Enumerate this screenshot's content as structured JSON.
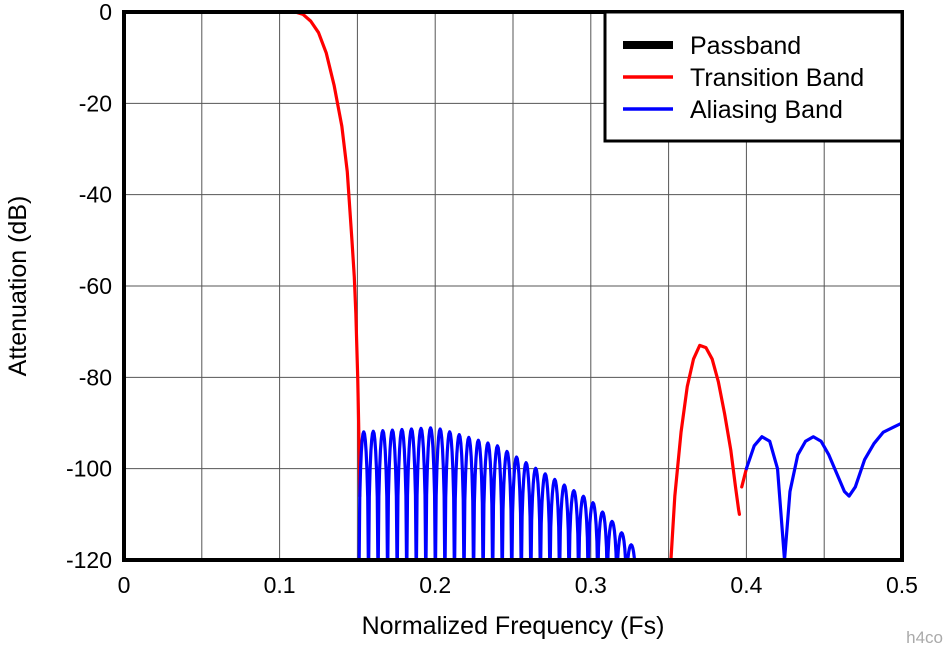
{
  "chart_data": {
    "type": "line",
    "xlabel": "Normalized Frequency (Fs)",
    "ylabel": "Attenuation (dB)",
    "xlim": [
      0,
      0.5
    ],
    "ylim": [
      -120,
      0
    ],
    "x_ticks": [
      "0",
      "0.1",
      "0.2",
      "0.3",
      "0.4",
      "0.5"
    ],
    "x_tick_values": [
      0,
      0.1,
      0.2,
      0.3,
      0.4,
      0.5
    ],
    "y_ticks": [
      "0",
      "-20",
      "-40",
      "-60",
      "-80",
      "-100",
      "-120"
    ],
    "y_tick_values": [
      0,
      -20,
      -40,
      -60,
      -80,
      -100,
      -120
    ],
    "x_minor_step": 0.05,
    "grid": true,
    "legend_position": "top-right",
    "series": [
      {
        "name": "Passband",
        "color": "#000000",
        "points": []
      },
      {
        "name": "Transition Band",
        "color": "#ff0000",
        "segments": [
          [
            [
              0.11,
              0
            ],
            [
              0.115,
              -0.5
            ],
            [
              0.12,
              -2
            ],
            [
              0.125,
              -4.5
            ],
            [
              0.13,
              -9
            ],
            [
              0.135,
              -16
            ],
            [
              0.14,
              -25
            ],
            [
              0.1435,
              -35
            ],
            [
              0.1465,
              -50
            ],
            [
              0.148,
              -58
            ],
            [
              0.149,
              -66
            ],
            [
              0.1502,
              -80
            ],
            [
              0.1508,
              -90
            ],
            [
              0.1512,
              -98
            ],
            [
              0.1515,
              -106
            ]
          ],
          [
            [
              0.3515,
              -120
            ],
            [
              0.354,
              -106
            ],
            [
              0.358,
              -92
            ],
            [
              0.362,
              -82
            ],
            [
              0.366,
              -76
            ],
            [
              0.37,
              -73
            ],
            [
              0.374,
              -73.5
            ],
            [
              0.378,
              -76
            ],
            [
              0.382,
              -81
            ],
            [
              0.386,
              -88
            ],
            [
              0.39,
              -96
            ],
            [
              0.393,
              -104
            ],
            [
              0.395,
              -109
            ],
            [
              0.3955,
              -110
            ]
          ],
          [
            [
              0.397,
              -104
            ],
            [
              0.3985,
              -102
            ],
            [
              0.4,
              -100
            ]
          ]
        ]
      },
      {
        "name": "Aliasing Band",
        "color": "#0000ff",
        "comb": {
          "x_start": 0.151,
          "x_end": 0.329,
          "lobes": 29,
          "peak_envelope": [
            [
              0.151,
              -92
            ],
            [
              0.2,
              -91
            ],
            [
              0.24,
              -95
            ],
            [
              0.27,
              -101
            ],
            [
              0.3,
              -107
            ],
            [
              0.315,
              -112
            ],
            [
              0.329,
              -118
            ]
          ]
        },
        "segments": [
          [
            [
              0.4,
              -100
            ],
            [
              0.405,
              -95
            ],
            [
              0.41,
              -93
            ],
            [
              0.415,
              -94
            ],
            [
              0.42,
              -100
            ],
            [
              0.4245,
              -120
            ]
          ],
          [
            [
              0.4245,
              -120
            ],
            [
              0.428,
              -105
            ],
            [
              0.433,
              -97
            ],
            [
              0.438,
              -94
            ],
            [
              0.443,
              -93
            ],
            [
              0.448,
              -94
            ],
            [
              0.453,
              -97
            ],
            [
              0.458,
              -101
            ],
            [
              0.463,
              -105
            ],
            [
              0.466,
              -106
            ],
            [
              0.47,
              -104
            ],
            [
              0.476,
              -98
            ],
            [
              0.482,
              -94.5
            ],
            [
              0.488,
              -92
            ],
            [
              0.494,
              -91
            ],
            [
              0.5,
              -90
            ]
          ]
        ]
      }
    ],
    "watermark": "h4co"
  }
}
